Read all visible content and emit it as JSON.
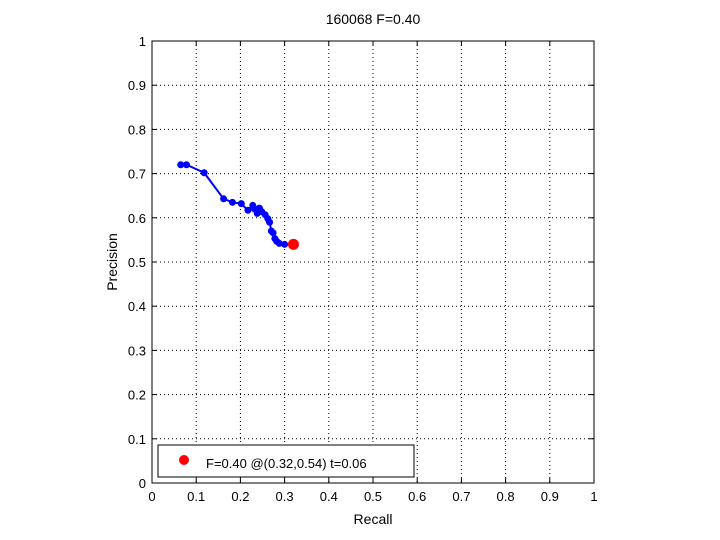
{
  "chart_data": {
    "type": "line",
    "title": "160068 F=0.40",
    "xlabel": "Recall",
    "ylabel": "Precision",
    "xlim": [
      0,
      1
    ],
    "ylim": [
      0,
      1
    ],
    "xticks": [
      "0",
      "0.1",
      "0.2",
      "0.3",
      "0.4",
      "0.5",
      "0.6",
      "0.7",
      "0.8",
      "0.9",
      "1"
    ],
    "yticks": [
      "0",
      "0.1",
      "0.2",
      "0.3",
      "0.4",
      "0.5",
      "0.6",
      "0.7",
      "0.8",
      "0.9",
      "1"
    ],
    "grid": true,
    "grid_style": "dotted",
    "legend_position": "bottom-left",
    "series": [
      {
        "color": "#0000ff",
        "x": [
          0.065,
          0.078,
          0.118,
          0.162,
          0.182,
          0.202,
          0.217,
          0.228,
          0.232,
          0.238,
          0.243,
          0.248,
          0.256,
          0.262,
          0.266,
          0.27,
          0.274,
          0.278,
          0.282,
          0.288,
          0.3,
          0.32
        ],
        "y": [
          0.72,
          0.72,
          0.702,
          0.643,
          0.635,
          0.632,
          0.617,
          0.628,
          0.62,
          0.61,
          0.622,
          0.614,
          0.607,
          0.598,
          0.59,
          0.57,
          0.566,
          0.553,
          0.547,
          0.542,
          0.54,
          0.54
        ]
      },
      {
        "name": "F=0.40 @(0.32,0.54) t=0.06",
        "color": "#ff0000",
        "x": [
          0.32
        ],
        "y": [
          0.54
        ]
      }
    ]
  }
}
